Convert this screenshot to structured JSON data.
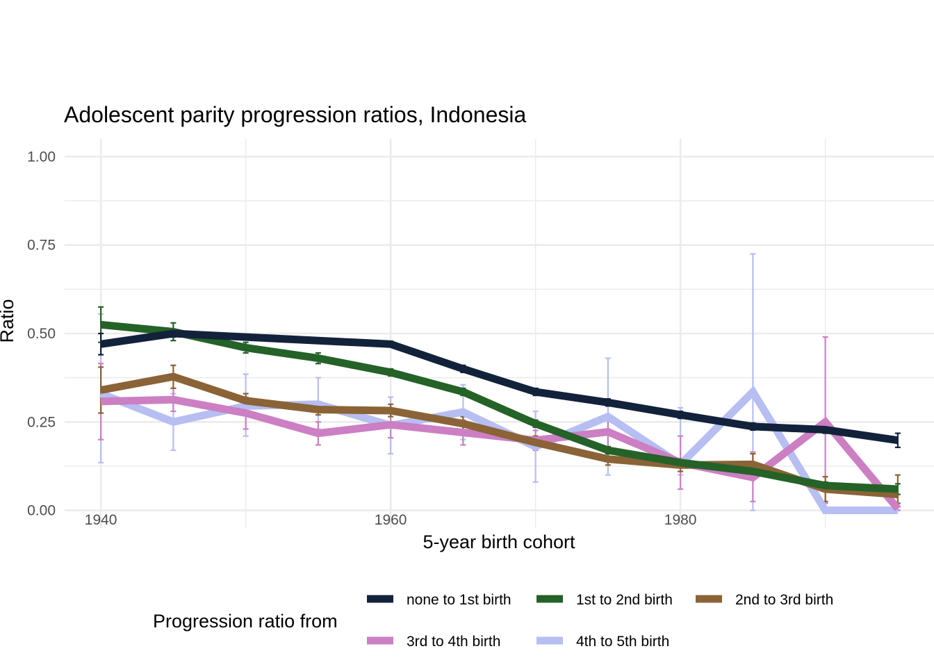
{
  "chart_data": {
    "type": "line",
    "title": "Adolescent parity progression ratios,  Indonesia",
    "xlabel": "5-year birth cohort",
    "ylabel": "Ratio",
    "xlim": [
      1937.5,
      1997.5
    ],
    "ylim": [
      -0.05,
      1.05
    ],
    "x_ticks": [
      1940,
      1960,
      1980
    ],
    "y_ticks": [
      0,
      0.25,
      0.5,
      0.75,
      1.0
    ],
    "y_tick_labels": [
      "0.00",
      "0.25",
      "0.50",
      "0.75",
      "1.00"
    ],
    "grid": true,
    "legend": {
      "title": "Progression ratio from",
      "position": "bottom"
    },
    "x": [
      1940,
      1945,
      1950,
      1955,
      1960,
      1965,
      1970,
      1975,
      1980,
      1985,
      1990,
      1995
    ],
    "series": [
      {
        "name": "none to 1st birth",
        "color": "#13223b",
        "values": [
          0.47,
          0.5,
          0.49,
          0.48,
          0.47,
          0.4,
          0.335,
          0.305,
          0.27,
          0.237,
          0.228,
          0.198
        ],
        "lower": [
          0.44,
          0.49,
          0.482,
          0.474,
          0.462,
          0.39,
          0.325,
          0.295,
          0.26,
          0.227,
          0.218,
          0.178
        ],
        "upper": [
          0.5,
          0.51,
          0.498,
          0.486,
          0.478,
          0.41,
          0.345,
          0.315,
          0.28,
          0.247,
          0.238,
          0.218
        ]
      },
      {
        "name": "1st to 2nd birth",
        "color": "#246228",
        "values": [
          0.525,
          0.505,
          0.46,
          0.43,
          0.39,
          0.335,
          0.245,
          0.17,
          0.135,
          0.11,
          0.07,
          0.06
        ],
        "lower": [
          0.475,
          0.48,
          0.445,
          0.415,
          0.38,
          0.325,
          0.235,
          0.16,
          0.125,
          0.1,
          0.06,
          0.045
        ],
        "upper": [
          0.575,
          0.53,
          0.475,
          0.445,
          0.4,
          0.345,
          0.255,
          0.18,
          0.145,
          0.12,
          0.08,
          0.075
        ]
      },
      {
        "name": "2nd to 3rd birth",
        "color": "#8a6337",
        "values": [
          0.34,
          0.378,
          0.31,
          0.285,
          0.282,
          0.245,
          0.192,
          0.145,
          0.128,
          0.13,
          0.06,
          0.045
        ],
        "lower": [
          0.275,
          0.345,
          0.29,
          0.27,
          0.265,
          0.225,
          0.175,
          0.128,
          0.11,
          0.1,
          0.025,
          0.02
        ],
        "upper": [
          0.405,
          0.41,
          0.33,
          0.3,
          0.3,
          0.265,
          0.21,
          0.162,
          0.146,
          0.16,
          0.095,
          0.1
        ]
      },
      {
        "name": "3rd to 4th birth",
        "color": "#cc7fc3",
        "values": [
          0.308,
          0.313,
          0.275,
          0.218,
          0.242,
          0.22,
          0.198,
          0.222,
          0.135,
          0.093,
          0.25,
          0.005
        ],
        "lower": [
          0.2,
          0.28,
          0.23,
          0.185,
          0.205,
          0.185,
          0.17,
          0.18,
          0.06,
          0.025,
          0.02,
          0.0
        ],
        "upper": [
          0.415,
          0.345,
          0.32,
          0.25,
          0.28,
          0.255,
          0.226,
          0.264,
          0.21,
          0.165,
          0.49,
          0.01
        ]
      },
      {
        "name": "4th to 5th birth",
        "color": "#b6bef2",
        "values": [
          0.33,
          0.25,
          0.295,
          0.3,
          0.24,
          0.278,
          0.18,
          0.265,
          0.13,
          0.335,
          0.0,
          0.0
        ],
        "lower": [
          0.135,
          0.17,
          0.21,
          0.23,
          0.16,
          0.2,
          0.08,
          0.1,
          0.1,
          0.0,
          0.0,
          0.0
        ],
        "upper": [
          0.555,
          0.33,
          0.385,
          0.375,
          0.32,
          0.355,
          0.28,
          0.43,
          0.29,
          0.725,
          0.0,
          0.0
        ]
      }
    ]
  }
}
